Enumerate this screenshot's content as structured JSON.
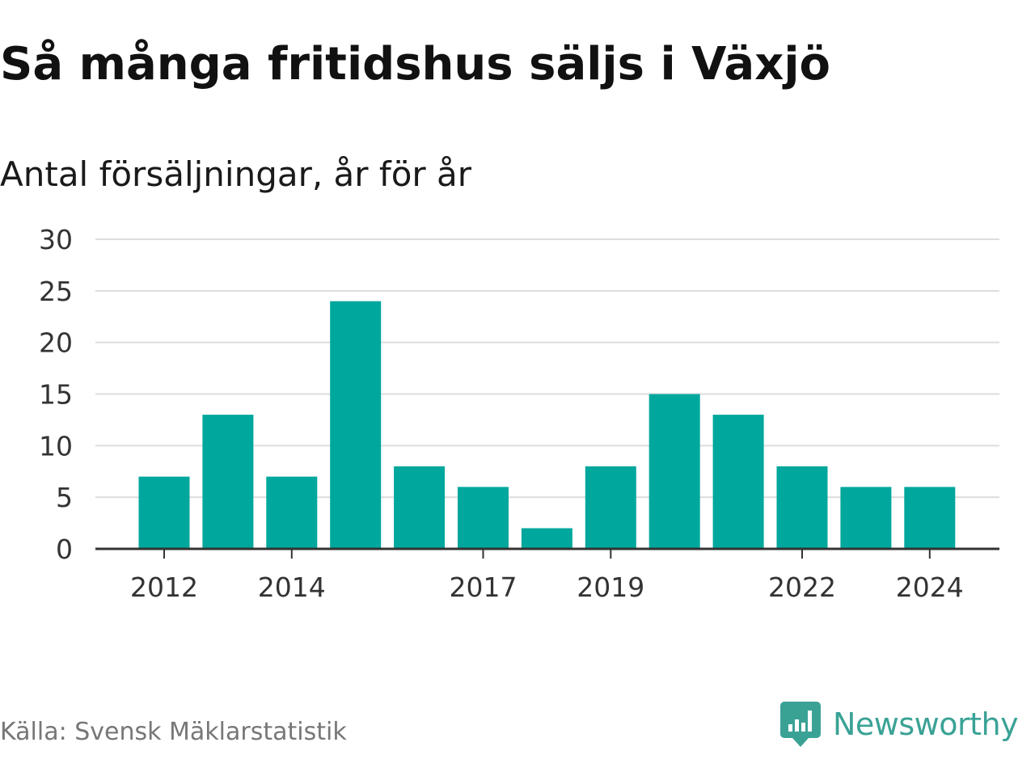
{
  "title": "Så många fritidshus säljs i Växjö",
  "subtitle": "Antal försäljningar, år för år",
  "source": "Källa: Svensk Mäklarstatistik",
  "brand": {
    "name": "Newsworthy",
    "icon": "speech-bubble-bar-chart-icon",
    "color": "#3aa295"
  },
  "colors": {
    "bar": "#00a79d",
    "grid": "#dddddd",
    "axis": "#333333",
    "text": "#333333"
  },
  "chart_data": {
    "type": "bar",
    "categories": [
      "2012",
      "2013",
      "2014",
      "2015",
      "2016",
      "2017",
      "2018",
      "2019",
      "2020",
      "2021",
      "2022",
      "2023",
      "2024"
    ],
    "values": [
      7,
      13,
      7,
      24,
      8,
      6,
      2,
      8,
      15,
      13,
      8,
      6,
      6
    ],
    "x_tick_labels": [
      "2012",
      "2014",
      "2017",
      "2019",
      "2022",
      "2024"
    ],
    "y_ticks": [
      "0",
      "5",
      "10",
      "15",
      "20",
      "25",
      "30"
    ],
    "ylim": [
      0,
      30
    ],
    "grid": true,
    "legend": "none"
  }
}
